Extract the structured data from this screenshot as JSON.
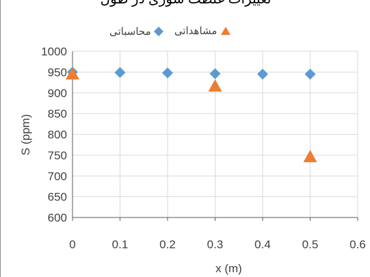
{
  "title_partial": "تغییرات غلظت شوری در طول",
  "colors": {
    "observed": "#ed7d31",
    "calculated": "#5b9bd5",
    "grid": "#d9d9d9",
    "axis": "#595959"
  },
  "chart_data": {
    "type": "scatter",
    "xlabel": "x (m)",
    "ylabel": "S (ppm)",
    "xlim": [
      0,
      0.6
    ],
    "ylim": [
      600,
      1000
    ],
    "x_ticks": [
      "0",
      "0.1",
      "0.2",
      "0.3",
      "0.4",
      "0.5",
      "0.6"
    ],
    "y_ticks": [
      "600",
      "650",
      "700",
      "750",
      "800",
      "850",
      "900",
      "950",
      "1000"
    ],
    "grid": true,
    "legend_position": "top",
    "series": [
      {
        "name": "مشاهداتی",
        "marker": "triangle",
        "color": "#ed7d31",
        "x": [
          0,
          0.3,
          0.5
        ],
        "y": [
          947,
          918,
          748
        ]
      },
      {
        "name": "محاسباتی",
        "marker": "diamond",
        "color": "#5b9bd5",
        "x": [
          0,
          0.1,
          0.2,
          0.3,
          0.4,
          0.5
        ],
        "y": [
          950,
          949,
          948,
          946,
          945,
          945
        ]
      }
    ]
  }
}
